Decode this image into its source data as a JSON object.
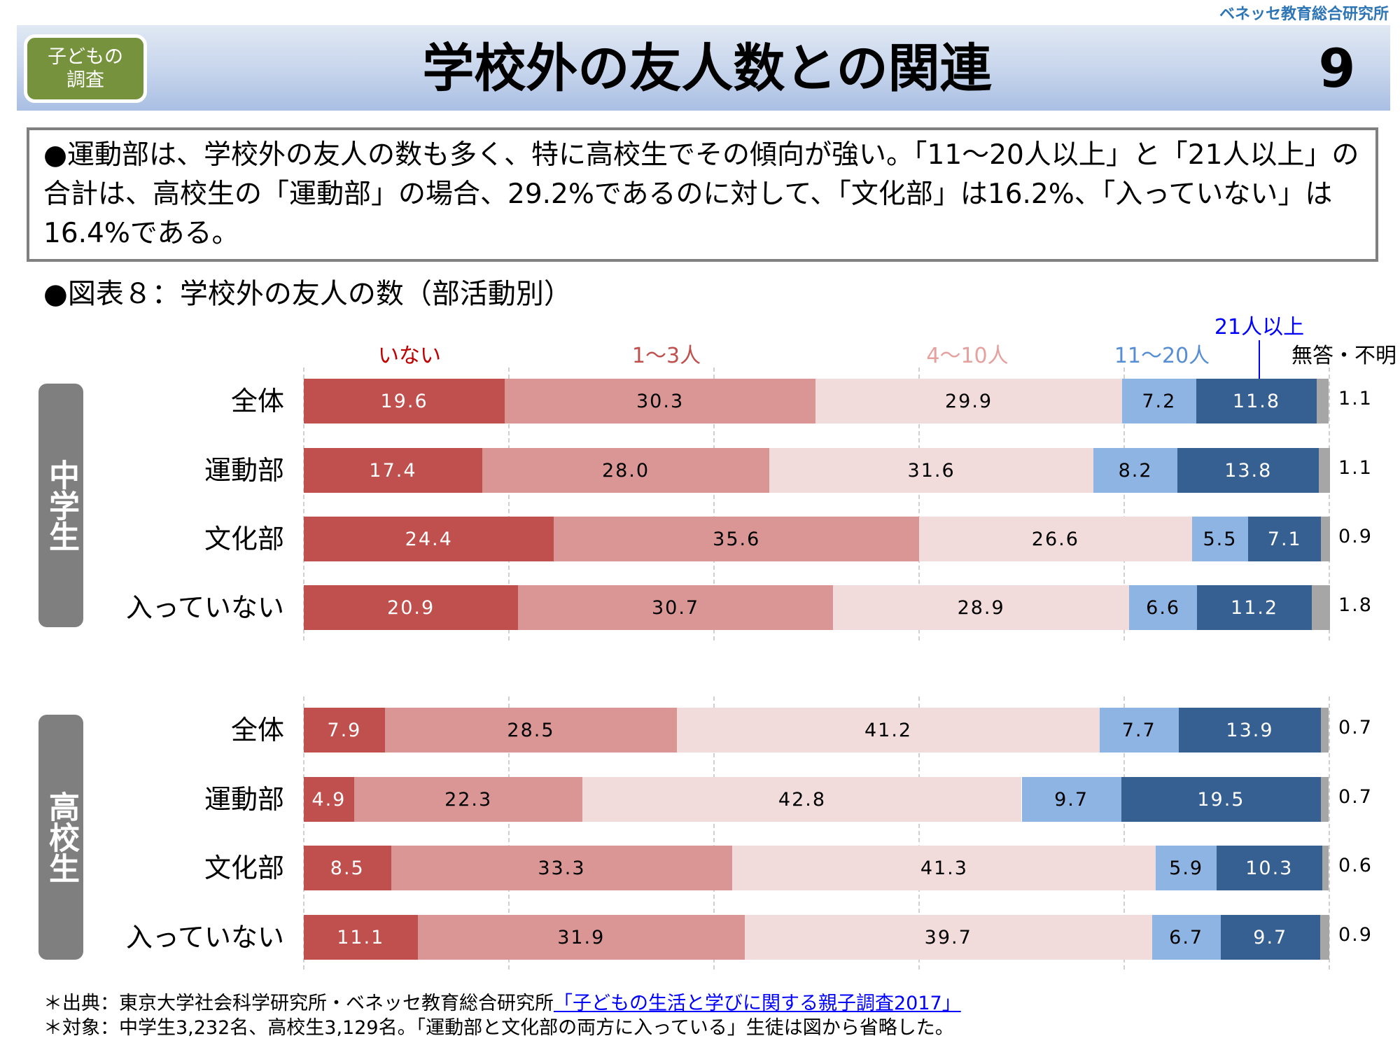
{
  "header": {
    "org_logo": "ベネッセ教育総合研究所",
    "badge_line1": "子どもの",
    "badge_line2": "調査",
    "title": "学校外の友人数との関連",
    "page_number": "9"
  },
  "summary": {
    "text": "●運動部は、学校外の友人の数も多く、特に高校生でその傾向が強い。「11～20人以上」と「21人以上」の合計は、高校生の「運動部」の場合、29.2%であるのに対して、「文化部」は16.2%、「入っていない」は16.4%である。"
  },
  "section_title": "●図表８：学校外の友人の数（部活動別）",
  "footer": {
    "source_prefix": "＊出典：東京大学社会科学研究所・ベネッセ教育総合研究所",
    "source_link": "「子どもの生活と学びに関する親子調査2017」",
    "target_note": "＊対象：中学生3,232名、高校生3,129名。「運動部と文化部の両方に入っている」生徒は図から省略した。"
  },
  "chart_data": {
    "type": "bar",
    "orientation": "horizontal",
    "stacked": true,
    "title": "学校外の友人の数（部活動別）",
    "unit": "%",
    "xlim": [
      0,
      100
    ],
    "grid": true,
    "legend_placement": "top",
    "legend": [
      {
        "name": "いない",
        "color": "#c0504d",
        "label_color": "#c00000",
        "text_color": "#ffffff"
      },
      {
        "name": "1～3人",
        "color": "#d99694",
        "label_color": "#c0504d",
        "text_color": "#000000"
      },
      {
        "name": "4～10人",
        "color": "#f2dcdb",
        "label_color": "#e6a09e",
        "text_color": "#000000"
      },
      {
        "name": "11～20人",
        "color": "#8eb4e3",
        "label_color": "#558ed5",
        "text_color": "#000000"
      },
      {
        "name": "21人以上",
        "color": "#376092",
        "label_color": "#0000ff",
        "text_color": "#ffffff"
      },
      {
        "name": "無答・不明",
        "color": "#a6a6a6",
        "label_color": "#000000",
        "text_color": "#000000"
      }
    ],
    "groups": [
      {
        "name": "中学生",
        "rows": [
          {
            "label": "全体",
            "values": [
              19.6,
              30.3,
              29.9,
              7.2,
              11.8,
              1.1
            ]
          },
          {
            "label": "運動部",
            "values": [
              17.4,
              28.0,
              31.6,
              8.2,
              13.8,
              1.1
            ]
          },
          {
            "label": "文化部",
            "values": [
              24.4,
              35.6,
              26.6,
              5.5,
              7.1,
              0.9
            ]
          },
          {
            "label": "入っていない",
            "values": [
              20.9,
              30.7,
              28.9,
              6.6,
              11.2,
              1.8
            ]
          }
        ]
      },
      {
        "name": "高校生",
        "rows": [
          {
            "label": "全体",
            "values": [
              7.9,
              28.5,
              41.2,
              7.7,
              13.9,
              0.7
            ]
          },
          {
            "label": "運動部",
            "values": [
              4.9,
              22.3,
              42.8,
              9.7,
              19.5,
              0.7
            ]
          },
          {
            "label": "文化部",
            "values": [
              8.5,
              33.3,
              41.3,
              5.9,
              10.3,
              0.6
            ]
          },
          {
            "label": "入っていない",
            "values": [
              11.1,
              31.9,
              39.7,
              6.7,
              9.7,
              0.9
            ]
          }
        ]
      }
    ]
  }
}
